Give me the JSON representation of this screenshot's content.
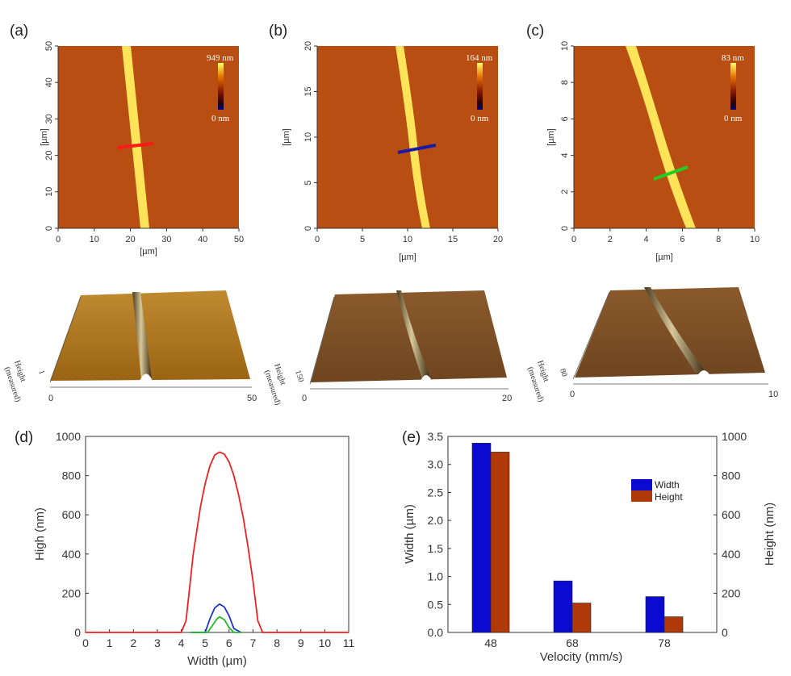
{
  "panels": {
    "a": {
      "label": "(a)",
      "scale_max": "949 nm",
      "scale_min": "0 nm",
      "x_ticks": [
        "0",
        "10",
        "20",
        "30",
        "40",
        "50"
      ],
      "y_ticks": [
        "0",
        "10",
        "20",
        "30",
        "40",
        "50"
      ],
      "x_unit": "[µm]",
      "y_unit": "[µm]",
      "line_color": "#ff1a1a",
      "side_label_1": "Height",
      "side_label_2": "(measured)",
      "side_tick": "1",
      "x3d_start": "0",
      "x3d_end": "50"
    },
    "b": {
      "label": "(b)",
      "scale_max": "164 nm",
      "scale_min": "0 nm",
      "x_ticks": [
        "0",
        "5",
        "10",
        "15",
        "20"
      ],
      "y_ticks": [
        "0",
        "5",
        "10",
        "15",
        "20"
      ],
      "x_unit": "[µm]",
      "y_unit": "[µm]",
      "line_color": "#1a1aa8",
      "side_label_1": "Height",
      "side_label_2": "(measured)",
      "side_tick": "150",
      "x3d_start": "0",
      "x3d_end": "20"
    },
    "c": {
      "label": "(c)",
      "scale_max": "83 nm",
      "scale_min": "0 nm",
      "x_ticks": [
        "0",
        "2",
        "4",
        "6",
        "8",
        "10"
      ],
      "y_ticks": [
        "0",
        "2",
        "4",
        "6",
        "8",
        "10"
      ],
      "x_unit": "[µm]",
      "y_unit": "[µm]",
      "line_color": "#22cc22",
      "side_label_1": "Height",
      "side_label_2": "(measured)",
      "side_tick": "80",
      "x3d_start": "0",
      "x3d_end": "10"
    },
    "d": {
      "label": "(d)"
    },
    "e": {
      "label": "(e)"
    }
  },
  "colors": {
    "afm_bg": "#b84e12",
    "afm_line": "#ffe45a",
    "plane": "#b07a26",
    "red": "#ee2222",
    "blue": "#2233cc",
    "green": "#22bb22",
    "bar_width": "#0a0ad0",
    "bar_height": "#b0390a"
  },
  "chart_data": [
    {
      "type": "line",
      "xlabel": "Width (µm)",
      "ylabel": "High (nm)",
      "xlim": [
        0,
        11
      ],
      "ylim": [
        0,
        1000
      ],
      "x_ticks": [
        "0",
        "1",
        "2",
        "3",
        "4",
        "5",
        "6",
        "7",
        "8",
        "9",
        "10",
        "11"
      ],
      "y_ticks": [
        "0",
        "200",
        "400",
        "600",
        "800",
        "1000"
      ],
      "series": [
        {
          "color": "red",
          "x": [
            0,
            4.0,
            4.2,
            4.5,
            4.8,
            5.0,
            5.2,
            5.4,
            5.6,
            5.8,
            6.0,
            6.2,
            6.4,
            6.6,
            6.8,
            7.0,
            7.2,
            7.4,
            11
          ],
          "y": [
            0,
            0,
            60,
            400,
            640,
            760,
            850,
            905,
            920,
            910,
            870,
            800,
            700,
            580,
            430,
            260,
            60,
            0,
            0
          ]
        },
        {
          "color": "blue",
          "x": [
            4.4,
            5.0,
            5.2,
            5.4,
            5.6,
            5.8,
            6.0,
            6.2,
            6.5
          ],
          "y": [
            0,
            0,
            70,
            125,
            145,
            130,
            85,
            20,
            0
          ]
        },
        {
          "color": "green",
          "x": [
            4.4,
            5.1,
            5.3,
            5.5,
            5.6,
            5.8,
            6.0,
            6.2,
            6.5
          ],
          "y": [
            0,
            0,
            35,
            70,
            80,
            65,
            25,
            0,
            0
          ]
        }
      ]
    },
    {
      "type": "bar",
      "xlabel": "Velocity (mm/s)",
      "ylabel": "Width (µm)",
      "ylabel_right": "Height (nm)",
      "categories": [
        "48",
        "68",
        "78"
      ],
      "ylim": [
        0,
        3.5
      ],
      "ylim_right": [
        0,
        1000
      ],
      "y_ticks": [
        "0.0",
        "0.5",
        "1.0",
        "1.5",
        "2.0",
        "2.5",
        "3.0",
        "3.5"
      ],
      "y_ticks_right": [
        "0",
        "200",
        "400",
        "600",
        "800",
        "1000"
      ],
      "legend_position": "top-right",
      "series": [
        {
          "name": "Width",
          "axis": "left",
          "values": [
            3.38,
            0.92,
            0.64
          ]
        },
        {
          "name": " Height",
          "axis": "right",
          "values": [
            920,
            150,
            80
          ]
        }
      ]
    }
  ]
}
